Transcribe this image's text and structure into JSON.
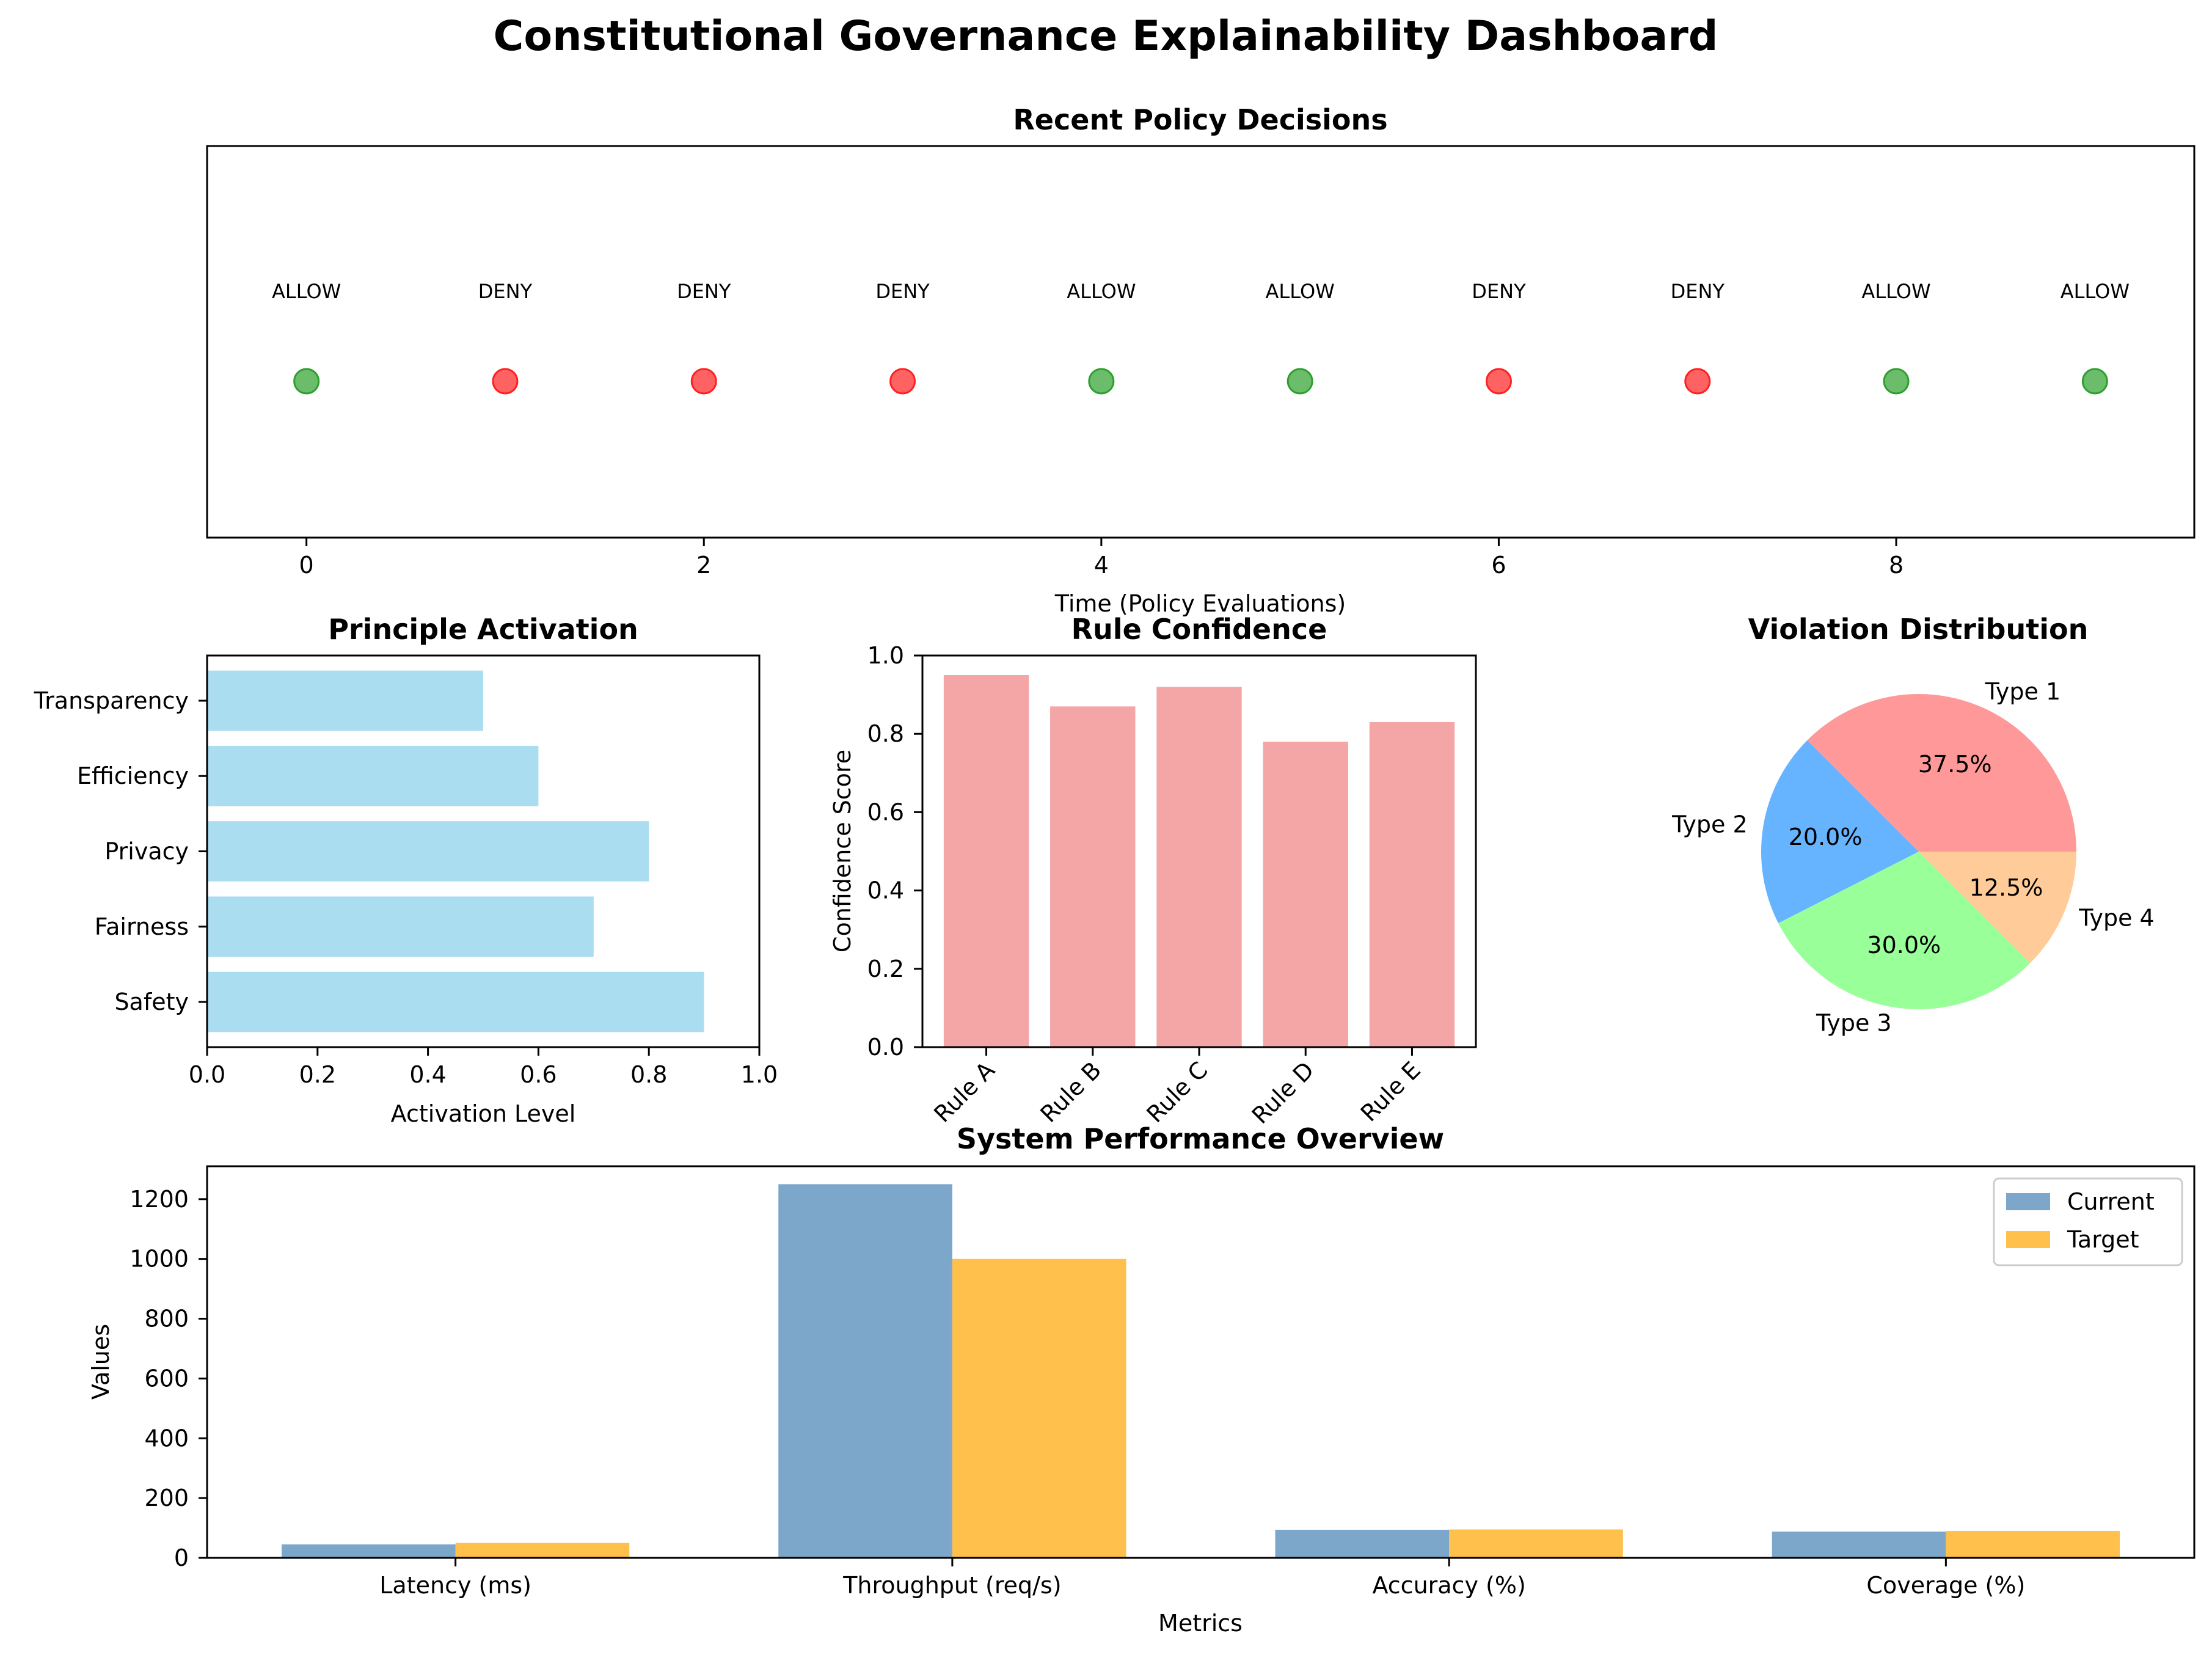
{
  "title": "Constitutional Governance Explainability Dashboard",
  "chart_data": [
    {
      "id": "decisions",
      "type": "scatter",
      "title": "Recent Policy Decisions",
      "xlabel": "Time (Policy Evaluations)",
      "ylabel": "",
      "xlim": [
        -0.5,
        9.5
      ],
      "xticks": [
        0,
        2,
        4,
        6,
        8
      ],
      "x": [
        0,
        1,
        2,
        3,
        4,
        5,
        6,
        7,
        8,
        9
      ],
      "labels": [
        "ALLOW",
        "DENY",
        "DENY",
        "DENY",
        "ALLOW",
        "ALLOW",
        "DENY",
        "DENY",
        "ALLOW",
        "ALLOW"
      ],
      "colors": {
        "ALLOW": "#2ca02c",
        "DENY": "#ff2020"
      }
    },
    {
      "id": "principles",
      "type": "bar",
      "orientation": "horizontal",
      "title": "Principle Activation",
      "xlabel": "Activation Level",
      "ylabel": "",
      "xlim": [
        0,
        1.0
      ],
      "xticks": [
        "0.0",
        "0.2",
        "0.4",
        "0.6",
        "0.8",
        "1.0"
      ],
      "categories": [
        "Safety",
        "Fairness",
        "Privacy",
        "Efficiency",
        "Transparency"
      ],
      "values": [
        0.9,
        0.7,
        0.8,
        0.6,
        0.5
      ],
      "color": "#87ceeb"
    },
    {
      "id": "rules",
      "type": "bar",
      "title": "Rule Confidence",
      "xlabel": "",
      "ylabel": "Confidence Score",
      "ylim": [
        0,
        1.0
      ],
      "yticks": [
        "0.0",
        "0.2",
        "0.4",
        "0.6",
        "0.8",
        "1.0"
      ],
      "categories": [
        "Rule A",
        "Rule B",
        "Rule C",
        "Rule D",
        "Rule E"
      ],
      "values": [
        0.95,
        0.87,
        0.92,
        0.78,
        0.83
      ],
      "color": "#f08080"
    },
    {
      "id": "violations",
      "type": "pie",
      "title": "Violation Distribution",
      "categories": [
        "Type 1",
        "Type 2",
        "Type 3",
        "Type 4"
      ],
      "percent_labels": [
        "37.5%",
        "20.0%",
        "30.0%",
        "12.5%"
      ],
      "values": [
        37.5,
        20.0,
        30.0,
        12.5
      ],
      "colors": [
        "#ff9999",
        "#66b3ff",
        "#99ff99",
        "#ffcc99"
      ]
    },
    {
      "id": "performance",
      "type": "bar",
      "title": "System Performance Overview",
      "xlabel": "Metrics",
      "ylabel": "Values",
      "ylim": [
        0,
        1310
      ],
      "yticks": [
        "0",
        "200",
        "400",
        "600",
        "800",
        "1000",
        "1200"
      ],
      "categories": [
        "Latency (ms)",
        "Throughput (req/s)",
        "Accuracy (%)",
        "Coverage (%)"
      ],
      "series": [
        {
          "name": "Current",
          "values": [
            45,
            1250,
            94,
            88
          ],
          "color": "#4682b4"
        },
        {
          "name": "Target",
          "values": [
            50,
            1000,
            95,
            90
          ],
          "color": "#ffa500"
        }
      ],
      "legend": "top-right"
    }
  ]
}
